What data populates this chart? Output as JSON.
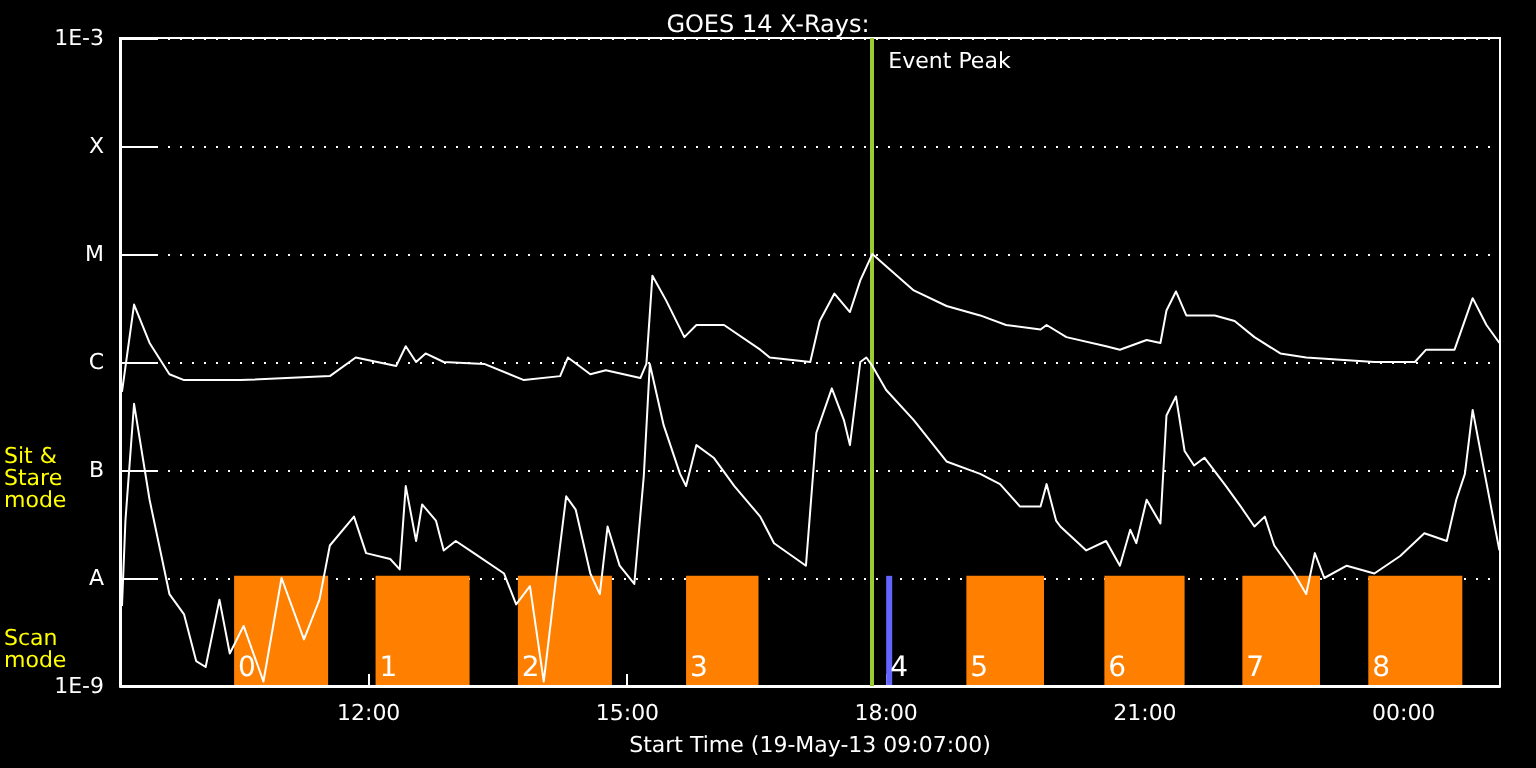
{
  "chart_data": {
    "type": "line",
    "title": "GOES 14 X-Rays:",
    "xlabel": "Start Time (19-May-13 09:07:00)",
    "annotations": [
      "Sit & Stare mode",
      "Scan mode"
    ],
    "xlim": [
      9.117,
      25.117
    ],
    "xticks": [
      {
        "value": 12,
        "label": "12:00"
      },
      {
        "value": 15,
        "label": "15:00"
      },
      {
        "value": 18,
        "label": "18:00"
      },
      {
        "value": 21,
        "label": "21:00"
      },
      {
        "value": 24,
        "label": "00:00"
      }
    ],
    "ylim": [
      1e-09,
      0.001
    ],
    "yticks": [
      {
        "value": 1e-09,
        "label": "1E-9"
      },
      {
        "value": 1e-08,
        "label": "A"
      },
      {
        "value": 1e-07,
        "label": "B"
      },
      {
        "value": 1e-06,
        "label": "C"
      },
      {
        "value": 1e-05,
        "label": "M"
      },
      {
        "value": 0.0001,
        "label": "X"
      },
      {
        "value": 0.001,
        "label": "1E-3"
      }
    ],
    "log": "y",
    "grid": "y",
    "marker": "none",
    "line_style": "solid",
    "series": [
      {
        "color": "#ffffff",
        "x": [
          9.14,
          9.28,
          9.46,
          9.69,
          9.86,
          10.51,
          11.55,
          11.85,
          12.32,
          12.43,
          12.55,
          12.66,
          12.87,
          13.34,
          13.8,
          14.22,
          14.31,
          14.57,
          14.75,
          15.15,
          15.22,
          15.29,
          15.45,
          15.66,
          15.8,
          16.12,
          16.54,
          16.65,
          17.12,
          17.23,
          17.4,
          17.58,
          17.7,
          17.84,
          18.0,
          18.32,
          18.7,
          19.09,
          19.39,
          19.79,
          19.86,
          20.09,
          20.55,
          20.71,
          21.02,
          21.18,
          21.25,
          21.36,
          21.48,
          21.81,
          22.04,
          22.27,
          22.57,
          22.87,
          23.66,
          24.13,
          24.26,
          24.59,
          24.8,
          24.96,
          25.11
        ],
        "values": [
          5.3e-07,
          3.4e-06,
          1.5e-06,
          7.7e-07,
          6.8e-07,
          6.8e-07,
          7.4e-07,
          1.1e-06,
          9.2e-07,
          1.4e-06,
          1e-06,
          1.2e-06,
          1e-06,
          9.6e-07,
          6.8e-07,
          7.4e-07,
          1.1e-06,
          7.7e-07,
          8.4e-07,
          7.1e-07,
          9.6e-07,
          6.3e-06,
          3.7e-06,
          1.7e-06,
          2.2e-06,
          2.2e-06,
          1.3e-06,
          1.1e-06,
          1e-06,
          2.4e-06,
          4.3e-06,
          2.9e-06,
          5.7e-06,
          1e-05,
          7.7e-06,
          4.6e-06,
          3.3e-06,
          2.7e-06,
          2.2e-06,
          2e-06,
          2.2e-06,
          1.7e-06,
          1.4e-06,
          1.3e-06,
          1.6e-06,
          1.5e-06,
          3e-06,
          4.5e-06,
          2.7e-06,
          2.7e-06,
          2.4e-06,
          1.7e-06,
          1.2e-06,
          1.1e-06,
          1e-06,
          1e-06,
          1.3e-06,
          1.3e-06,
          3.9e-06,
          2.2e-06,
          1.5e-06
        ]
      },
      {
        "color": "#ffffff",
        "x": [
          9.14,
          9.18,
          9.28,
          9.46,
          9.69,
          9.86,
          10.0,
          10.11,
          10.27,
          10.39,
          10.55,
          10.78,
          10.99,
          11.25,
          11.43,
          11.55,
          11.83,
          11.97,
          12.25,
          12.36,
          12.43,
          12.55,
          12.62,
          12.78,
          12.87,
          13.01,
          13.22,
          13.57,
          13.71,
          13.87,
          14.03,
          14.17,
          14.29,
          14.4,
          14.57,
          14.68,
          14.77,
          14.91,
          15.08,
          15.19,
          15.26,
          15.42,
          15.61,
          15.68,
          15.8,
          16.0,
          16.24,
          16.54,
          16.7,
          17.07,
          17.19,
          17.37,
          17.51,
          17.58,
          17.7,
          17.77,
          17.84,
          18.0,
          18.32,
          18.7,
          19.09,
          19.32,
          19.55,
          19.79,
          19.86,
          19.97,
          20.02,
          20.32,
          20.55,
          20.71,
          20.83,
          20.9,
          21.02,
          21.18,
          21.25,
          21.36,
          21.46,
          21.57,
          21.69,
          21.94,
          22.11,
          22.27,
          22.39,
          22.5,
          22.73,
          22.87,
          22.97,
          23.08,
          23.34,
          23.66,
          23.96,
          24.24,
          24.5,
          24.61,
          24.71,
          24.8,
          24.94,
          25.11
        ],
        "values": [
          5.5e-09,
          3.4e-08,
          4.1e-07,
          5.3e-08,
          7.1e-09,
          4.6e-09,
          1.7e-09,
          1.5e-09,
          6.3e-09,
          2e-09,
          3.6e-09,
          1.1e-09,
          1e-08,
          2.7e-09,
          6.3e-09,
          2e-08,
          3.7e-08,
          1.7e-08,
          1.5e-08,
          1.2e-08,
          7.1e-08,
          2.2e-08,
          4.8e-08,
          3.4e-08,
          1.8e-08,
          2.2e-08,
          1.7e-08,
          1.1e-08,
          5.7e-09,
          8.4e-09,
          1.1e-09,
          9.6e-09,
          5.7e-08,
          4.3e-08,
          1.1e-08,
          7.1e-09,
          3e-08,
          1.3e-08,
          8.8e-09,
          8.8e-08,
          9.6e-07,
          2.6e-07,
          9.2e-08,
          7.1e-08,
          1.7e-07,
          1.3e-07,
          7.1e-08,
          3.7e-08,
          2.1e-08,
          1.3e-08,
          2.2e-07,
          5.7e-07,
          2.9e-07,
          1.7e-07,
          1e-06,
          1.1e-06,
          9.2e-07,
          5.5e-07,
          2.9e-07,
          1.2e-07,
          9.2e-08,
          7.4e-08,
          4.6e-08,
          4.6e-08,
          7.4e-08,
          3.4e-08,
          3e-08,
          1.8e-08,
          2.2e-08,
          1.3e-08,
          2.8e-08,
          2.1e-08,
          5.3e-08,
          3.2e-08,
          3.2e-07,
          4.8e-07,
          1.5e-07,
          1.1e-07,
          1.3e-07,
          7.1e-08,
          4.6e-08,
          3e-08,
          3.7e-08,
          2e-08,
          1.1e-08,
          7.1e-09,
          1.7e-08,
          1e-08,
          1.3e-08,
          1.1e-08,
          1.6e-08,
          2.6e-08,
          2.2e-08,
          5.3e-08,
          9.2e-08,
          3.6e-07,
          9.2e-08,
          1.8e-08
        ]
      }
    ],
    "ref_lines": [
      {
        "axis": "x",
        "value": 17.84,
        "label": "Event Peak",
        "color": "#9acd32"
      }
    ],
    "bands": [
      {
        "axis": "x",
        "from": 10.44,
        "to": 11.53,
        "label": "0",
        "color": "#ff8000"
      },
      {
        "axis": "x",
        "from": 12.08,
        "to": 13.17,
        "label": "1",
        "color": "#ff8000"
      },
      {
        "axis": "x",
        "from": 13.73,
        "to": 14.82,
        "label": "2",
        "color": "#ff8000"
      },
      {
        "axis": "x",
        "from": 15.68,
        "to": 16.52,
        "label": "3",
        "color": "#ff8000"
      },
      {
        "axis": "x",
        "from": 18.0,
        "to": 18.07,
        "label": "4",
        "color": "#6464ff"
      },
      {
        "axis": "x",
        "from": 18.93,
        "to": 19.83,
        "label": "5",
        "color": "#ff8000"
      },
      {
        "axis": "x",
        "from": 20.53,
        "to": 21.46,
        "label": "6",
        "color": "#ff8000"
      },
      {
        "axis": "x",
        "from": 22.13,
        "to": 23.03,
        "label": "7",
        "color": "#ff8000"
      },
      {
        "axis": "x",
        "from": 23.59,
        "to": 24.68,
        "label": "8",
        "color": "#ff8000"
      }
    ]
  }
}
